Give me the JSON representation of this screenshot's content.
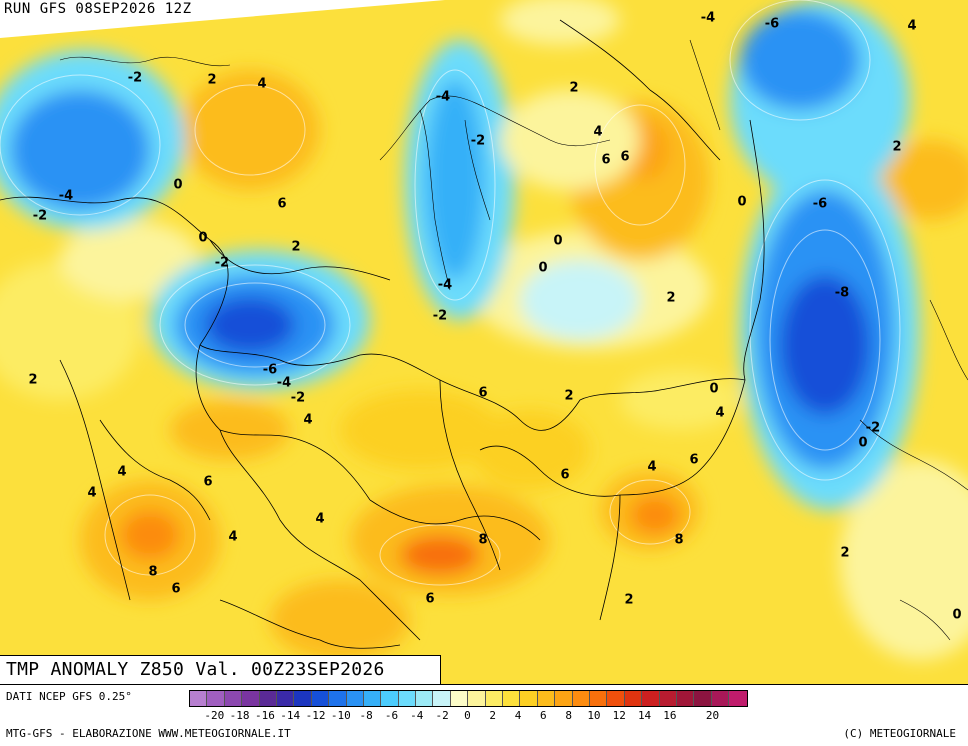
{
  "header": {
    "run": "RUN GFS 08SEP2026 12Z"
  },
  "title": {
    "text": "TMP ANOMALY Z850 Val. 00Z23SEP2026"
  },
  "footer": {
    "dati": "DATI NCEP GFS 0.25°",
    "mtg": "MTG-GFS - ELABORAZIONE WWW.METEOGIORNALE.IT",
    "copyright": "(C) METEOGIORNALE"
  },
  "colorbar": {
    "colors": [
      "#b77fd0",
      "#a05fc0",
      "#8c48b0",
      "#7a35a0",
      "#5a2a96",
      "#3a2aa8",
      "#1c36c0",
      "#1650d8",
      "#1e72ea",
      "#2a92f4",
      "#36b0f8",
      "#4cccfc",
      "#6cdcfc",
      "#9ceaf6",
      "#c8f4f8",
      "#fcfcc8",
      "#fcf49c",
      "#fcec64",
      "#fce03c",
      "#fcd024",
      "#fcbc1c",
      "#fca414",
      "#fc8c10",
      "#f8700c",
      "#f0500c",
      "#e03410",
      "#cc2020",
      "#b81c30",
      "#a01638",
      "#8c1440",
      "#a81858",
      "#c01c6c"
    ],
    "ticks": [
      {
        "v": -20,
        "label": "-20"
      },
      {
        "v": -18,
        "label": "-18"
      },
      {
        "v": -16,
        "label": "-16"
      },
      {
        "v": -14,
        "label": "-14"
      },
      {
        "v": -12,
        "label": "-12"
      },
      {
        "v": -10,
        "label": "-10"
      },
      {
        "v": -8,
        "label": "-8"
      },
      {
        "v": -6,
        "label": "-6"
      },
      {
        "v": -4,
        "label": "-4"
      },
      {
        "v": -2,
        "label": "-2"
      },
      {
        "v": 0,
        "label": "0"
      },
      {
        "v": 2,
        "label": "2"
      },
      {
        "v": 4,
        "label": "4"
      },
      {
        "v": 6,
        "label": "6"
      },
      {
        "v": 8,
        "label": "8"
      },
      {
        "v": 10,
        "label": "10"
      },
      {
        "v": 12,
        "label": "12"
      },
      {
        "v": 14,
        "label": "14"
      },
      {
        "v": 16,
        "label": "16"
      },
      {
        "v": 20,
        "label": "20"
      }
    ]
  },
  "map": {
    "field_labels": [
      "-2",
      "2",
      "4",
      "-4",
      "-2",
      "-4",
      "-6",
      "4",
      "6",
      "-4",
      "0",
      "6",
      "4",
      "-2",
      "2",
      "0",
      "0",
      "6",
      "-6",
      "0",
      "0",
      "-2",
      "-4",
      "2",
      "-2",
      "-8",
      "2",
      "2",
      "-6",
      "-4",
      "0",
      "-2",
      "2",
      "6",
      "-2",
      "2",
      "4",
      "0",
      "6",
      "6",
      "4",
      "6",
      "4",
      "4",
      "4",
      "8",
      "8",
      "8",
      "6",
      "2",
      "6",
      "4",
      "4",
      "2",
      "0"
    ]
  }
}
